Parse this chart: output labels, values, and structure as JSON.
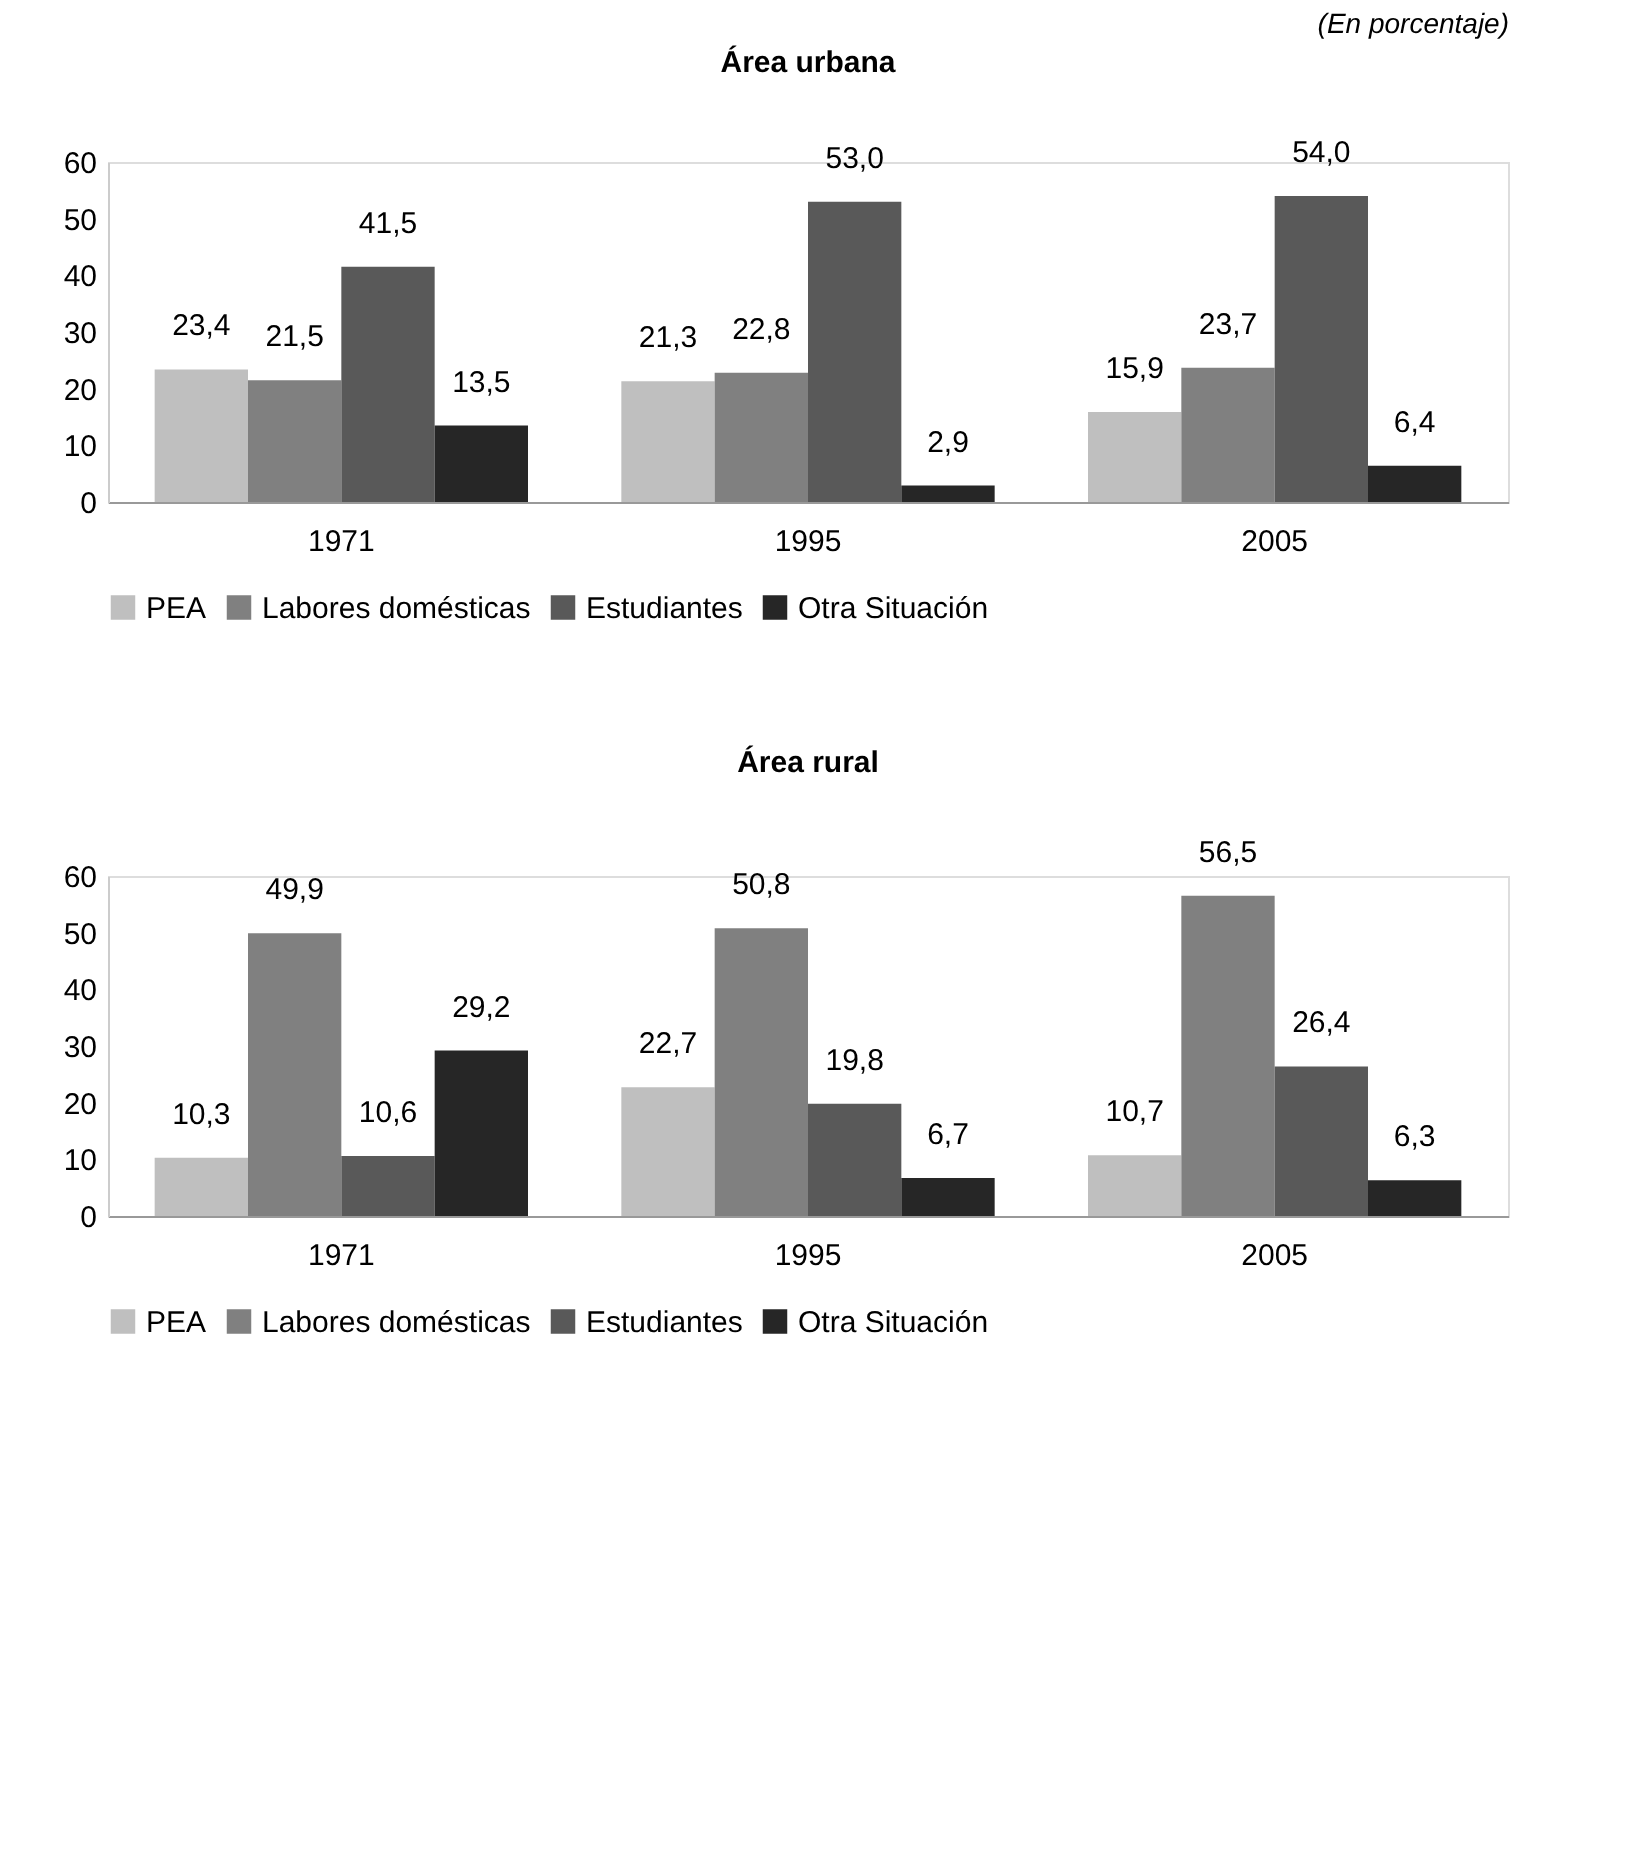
{
  "chart_data": [
    {
      "type": "bar",
      "title": "Área urbana",
      "categories": [
        "1971",
        "1995",
        "2005"
      ],
      "ylim": [
        0,
        60
      ],
      "yticks": [
        0,
        10,
        20,
        30,
        40,
        50,
        60
      ],
      "grid": false,
      "legend": "bottom",
      "annotations": [
        "(En porcentaje)"
      ],
      "series": [
        {
          "name": "PEA",
          "color": "#bfbfbf",
          "values": [
            23.4,
            21.3,
            15.9
          ],
          "value_labels": [
            "23,4",
            "21,3",
            "15,9"
          ]
        },
        {
          "name": "Labores domésticas",
          "color": "#808080",
          "values": [
            21.5,
            22.8,
            23.7
          ],
          "value_labels": [
            "21,5",
            "22,8",
            "23,7"
          ]
        },
        {
          "name": "Estudiantes",
          "color": "#595959",
          "values": [
            41.5,
            53.0,
            54.0
          ],
          "value_labels": [
            "41,5",
            "53,0",
            "54,0"
          ]
        },
        {
          "name": "Otra Situación",
          "color": "#262626",
          "values": [
            13.5,
            2.9,
            6.4
          ],
          "value_labels": [
            "13,5",
            "2,9",
            "6,4"
          ]
        }
      ]
    },
    {
      "type": "bar",
      "title": "Área rural",
      "categories": [
        "1971",
        "1995",
        "2005"
      ],
      "ylim": [
        0,
        60
      ],
      "yticks": [
        0,
        10,
        20,
        30,
        40,
        50,
        60
      ],
      "grid": false,
      "legend": "bottom",
      "series": [
        {
          "name": "PEA",
          "color": "#bfbfbf",
          "values": [
            10.3,
            22.7,
            10.7
          ],
          "value_labels": [
            "10,3",
            "22,7",
            "10,7"
          ]
        },
        {
          "name": "Labores domésticas",
          "color": "#808080",
          "values": [
            49.9,
            50.8,
            56.5
          ],
          "value_labels": [
            "49,9",
            "50,8",
            "56,5"
          ]
        },
        {
          "name": "Estudiantes",
          "color": "#595959",
          "values": [
            10.6,
            19.8,
            26.4
          ],
          "value_labels": [
            "10,6",
            "19,8",
            "26,4"
          ]
        },
        {
          "name": "Otra Situación",
          "color": "#262626",
          "values": [
            29.2,
            6.7,
            6.3
          ],
          "value_labels": [
            "29,2",
            "6,7",
            "6,3"
          ]
        }
      ]
    }
  ]
}
